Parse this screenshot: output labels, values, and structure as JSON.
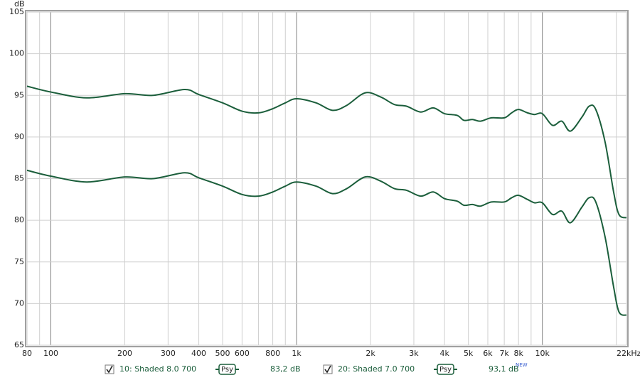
{
  "chart_data": {
    "type": "line",
    "x_log": true,
    "y_unit": "dB",
    "x": [
      80,
      100,
      140,
      200,
      260,
      350,
      400,
      500,
      600,
      700,
      800,
      900,
      1000,
      1200,
      1400,
      1600,
      1900,
      2200,
      2500,
      2800,
      3200,
      3600,
      4000,
      4500,
      4800,
      5200,
      5600,
      6200,
      7000,
      7500,
      8000,
      8700,
      9300,
      10000,
      11000,
      12000,
      13000,
      14500,
      15500,
      16500,
      18000,
      19500,
      20500,
      22000
    ],
    "series": [
      {
        "name": "10: Shaded 8.0 700",
        "smoothing": "Psy",
        "level": "83,2 dB",
        "color": "#1b5e3b",
        "values": [
          86.0,
          85.3,
          84.6,
          85.2,
          85.0,
          85.7,
          85.1,
          84.1,
          83.1,
          82.9,
          83.4,
          84.1,
          84.6,
          84.1,
          83.2,
          83.8,
          85.2,
          84.7,
          83.8,
          83.6,
          82.9,
          83.4,
          82.6,
          82.3,
          81.8,
          81.9,
          81.7,
          82.2,
          82.2,
          82.7,
          83.0,
          82.5,
          82.1,
          82.1,
          80.7,
          81.1,
          79.7,
          81.6,
          82.7,
          82.2,
          78,
          72,
          69,
          68.6
        ]
      },
      {
        "name": "20: Shaded 7.0 700",
        "smoothing": "Psy",
        "level": "93,1 dB",
        "badge": "NEW",
        "color": "#1b5e3b",
        "values": [
          96.1,
          95.4,
          94.7,
          95.2,
          95.0,
          95.7,
          95.1,
          94.1,
          93.1,
          92.9,
          93.4,
          94.1,
          94.6,
          94.1,
          93.2,
          93.8,
          95.3,
          94.8,
          93.9,
          93.7,
          93.0,
          93.5,
          92.8,
          92.6,
          92.0,
          92.1,
          91.9,
          92.3,
          92.3,
          92.9,
          93.3,
          92.9,
          92.7,
          92.8,
          91.4,
          91.9,
          90.7,
          92.4,
          93.7,
          93.3,
          89.4,
          83.4,
          80.7,
          80.3
        ]
      }
    ],
    "xlim": [
      80,
      22000
    ],
    "ylim": [
      65,
      105
    ],
    "xticks": [
      80,
      100,
      200,
      300,
      400,
      500,
      600,
      800,
      {
        "value": 1000,
        "label": "1k"
      },
      {
        "value": 2000,
        "label": "2k"
      },
      {
        "value": 3000,
        "label": "3k"
      },
      {
        "value": 4000,
        "label": "4k"
      },
      {
        "value": 5000,
        "label": "5k"
      },
      {
        "value": 6000,
        "label": "6k"
      },
      {
        "value": 7000,
        "label": "7k"
      },
      {
        "value": 8000,
        "label": "8k"
      },
      {
        "value": 10000,
        "label": "10k"
      },
      {
        "value": 22000,
        "label": "22kHz"
      }
    ],
    "xminor": [
      90,
      700,
      900,
      9000,
      20000
    ],
    "yticks": [
      65,
      70,
      75,
      80,
      85,
      90,
      95,
      100,
      105
    ],
    "grid": true
  }
}
